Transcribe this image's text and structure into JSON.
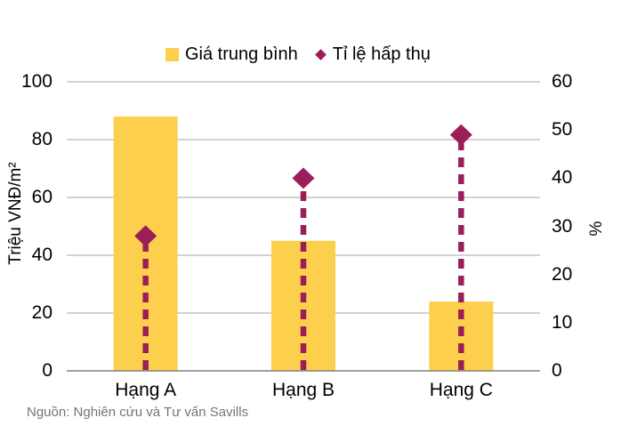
{
  "colors": {
    "bar": "#FCD04D",
    "marker": "#9B1E5A",
    "gridline": "#A6A6A6",
    "axis_line": "#808080",
    "text": "#000000",
    "source_text": "#757575",
    "background": "#FFFFFF"
  },
  "legend": {
    "items": [
      {
        "label": "Giá trung bình",
        "marker": "yellow-square"
      },
      {
        "label": "Tỉ lệ hấp thụ",
        "marker": "magenta-diamond"
      }
    ]
  },
  "source_note": "Nguồn: Nghiên cứu và Tư vấn Savills",
  "chart_data": {
    "type": "bar",
    "subtype": "combo: bars (left axis) + diamond markers with dashed vertical stems (right axis)",
    "categories": [
      "Hạng A",
      "Hạng B",
      "Hạng C"
    ],
    "series": [
      {
        "name": "Giá trung bình",
        "type": "bar",
        "axis": "left",
        "values": [
          88,
          45,
          24
        ]
      },
      {
        "name": "Tỉ lệ hấp thụ",
        "type": "scatter",
        "marker": "diamond-dashed-stem",
        "axis": "right",
        "values": [
          28,
          40,
          49
        ]
      }
    ],
    "left_axis": {
      "title": "Triệu VNĐ/m²",
      "min": 0,
      "max": 100,
      "ticks": [
        0,
        20,
        40,
        60,
        80,
        100
      ]
    },
    "right_axis": {
      "title": "%",
      "min": 0,
      "max": 60,
      "ticks": [
        0,
        10,
        20,
        30,
        40,
        50,
        60
      ]
    },
    "grid": true,
    "legend_position": "top-center"
  }
}
